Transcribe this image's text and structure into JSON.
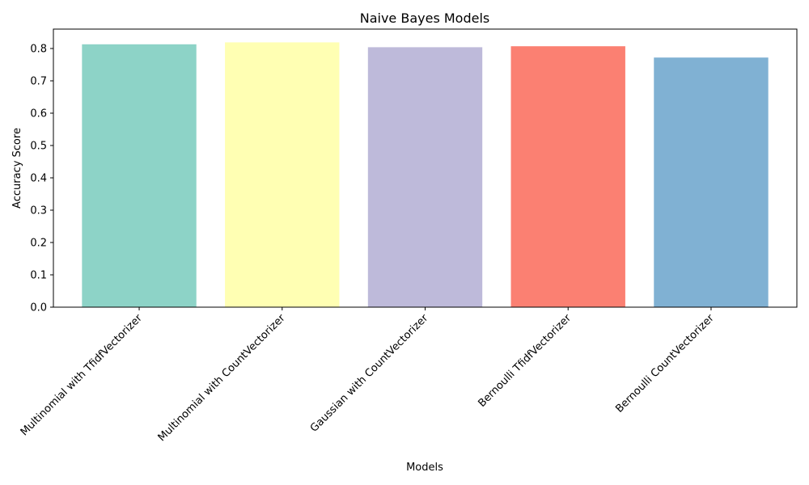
{
  "chart_data": {
    "type": "bar",
    "title": "Naive Bayes Models",
    "xlabel": "Models",
    "ylabel": "Accuracy Score",
    "categories": [
      "Multinomial with TfidfVectorizer",
      "Multinomial with CountVectorizer",
      "Gaussian with CountVectorizer",
      "Bernoulli TfidfVectorizer",
      "Bernoulli CountVectorizer"
    ],
    "values": [
      0.813,
      0.819,
      0.804,
      0.807,
      0.772
    ],
    "colors": [
      "#8dd3c7",
      "#ffffb3",
      "#bebada",
      "#fb8072",
      "#80b1d3"
    ],
    "ylim": [
      0,
      0.86
    ],
    "yticks": [
      0.0,
      0.1,
      0.2,
      0.3,
      0.4,
      0.5,
      0.6,
      0.7,
      0.8
    ],
    "ytick_labels": [
      "0.0",
      "0.1",
      "0.2",
      "0.3",
      "0.4",
      "0.5",
      "0.6",
      "0.7",
      "0.8"
    ],
    "xtick_rotation": 45,
    "grid": false,
    "legend": "none"
  }
}
